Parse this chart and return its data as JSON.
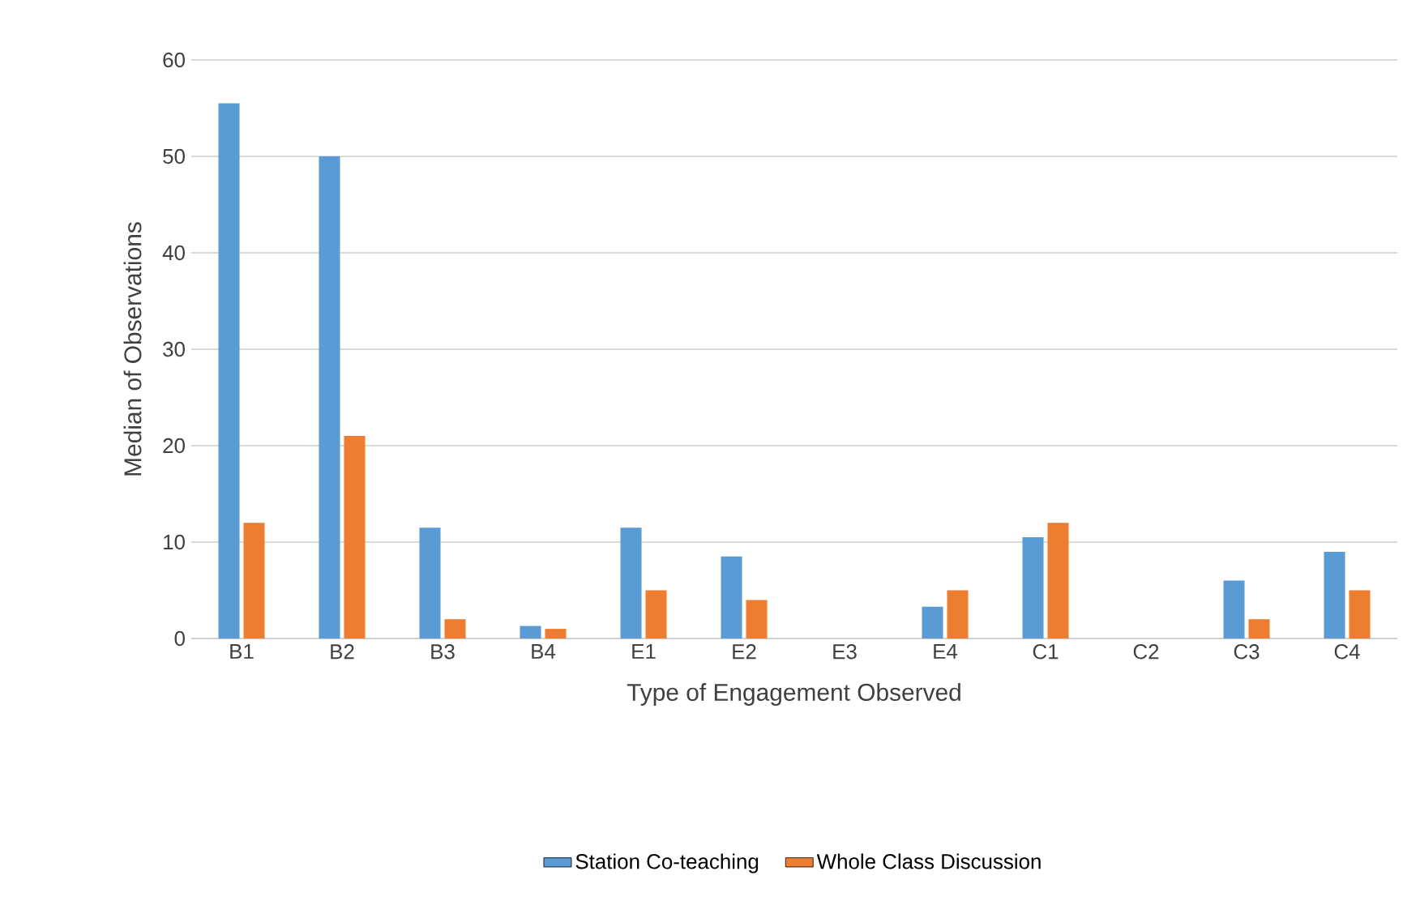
{
  "chart_data": {
    "type": "bar",
    "xlabel": "Type of Engagement Observed",
    "ylabel": "Median of Observations",
    "categories": [
      "B1",
      "B2",
      "B3",
      "B4",
      "E1",
      "E2",
      "E3",
      "E4",
      "C1",
      "C2",
      "C3",
      "C4"
    ],
    "series": [
      {
        "name": "Station Co-teaching",
        "color": "#5b9bd5",
        "values": [
          55.5,
          50,
          11.5,
          1.3,
          11.5,
          8.5,
          0,
          3.3,
          10.5,
          0,
          6,
          9
        ]
      },
      {
        "name": "Whole Class Discussion",
        "color": "#ed7d31",
        "values": [
          12,
          21,
          2,
          1,
          5,
          4,
          0,
          5,
          12,
          0,
          2,
          5
        ]
      }
    ],
    "ylim": [
      0,
      60
    ],
    "yticks": [
      0,
      10,
      20,
      30,
      40,
      50,
      60
    ],
    "grid": "y",
    "legend": "bottom"
  }
}
